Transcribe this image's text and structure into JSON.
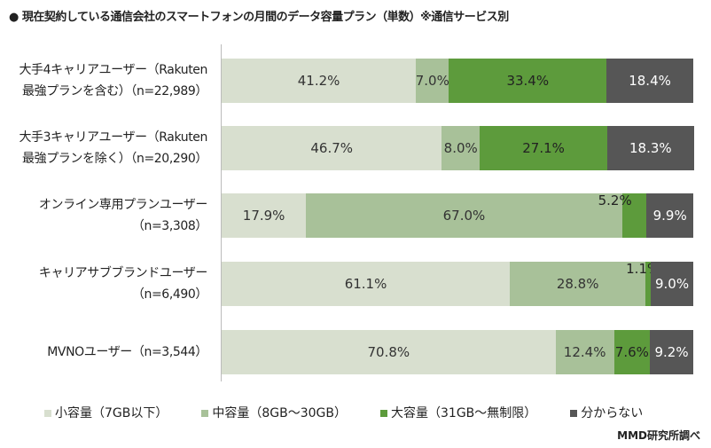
{
  "chart_data": {
    "type": "bar",
    "orientation": "horizontal-stacked-100",
    "title": "● 現在契約している通信会社のスマートフォンの月間のデータ容量プラン（単数）※通信サービス別",
    "categories": [
      "大手4キャリアユーザー（Rakuten\n最強プランを含む）（n=22,989）",
      "大手3キャリアユーザー（Rakuten\n最強プランを除く）（n=20,290）",
      "オンライン専用プランユーザー\n（n=3,308）",
      "キャリアサブブランドユーザー\n（n=6,490）",
      "MVNOユーザー（n=3,544）"
    ],
    "series": [
      {
        "name": "小容量（7GB以下）",
        "color": "#d8dfcf",
        "label_color": "#333",
        "values": [
          41.2,
          46.7,
          17.9,
          61.1,
          70.8
        ]
      },
      {
        "name": "中容量（8GB～30GB）",
        "color": "#a8c199",
        "label_color": "#333",
        "values": [
          7.0,
          8.0,
          67.0,
          28.8,
          12.4
        ]
      },
      {
        "name": "大容量（31GB～無制限）",
        "color": "#5d9b3c",
        "label_color": "#222",
        "values": [
          33.4,
          27.1,
          5.2,
          1.1,
          7.6
        ]
      },
      {
        "name": "分からない",
        "color": "#565656",
        "label_color": "#fff",
        "values": [
          18.4,
          18.3,
          9.9,
          9.0,
          9.2
        ]
      }
    ],
    "value_suffix": "%",
    "xlim": [
      0,
      100
    ],
    "legend": "bottom",
    "source": "MMD研究所調べ"
  }
}
